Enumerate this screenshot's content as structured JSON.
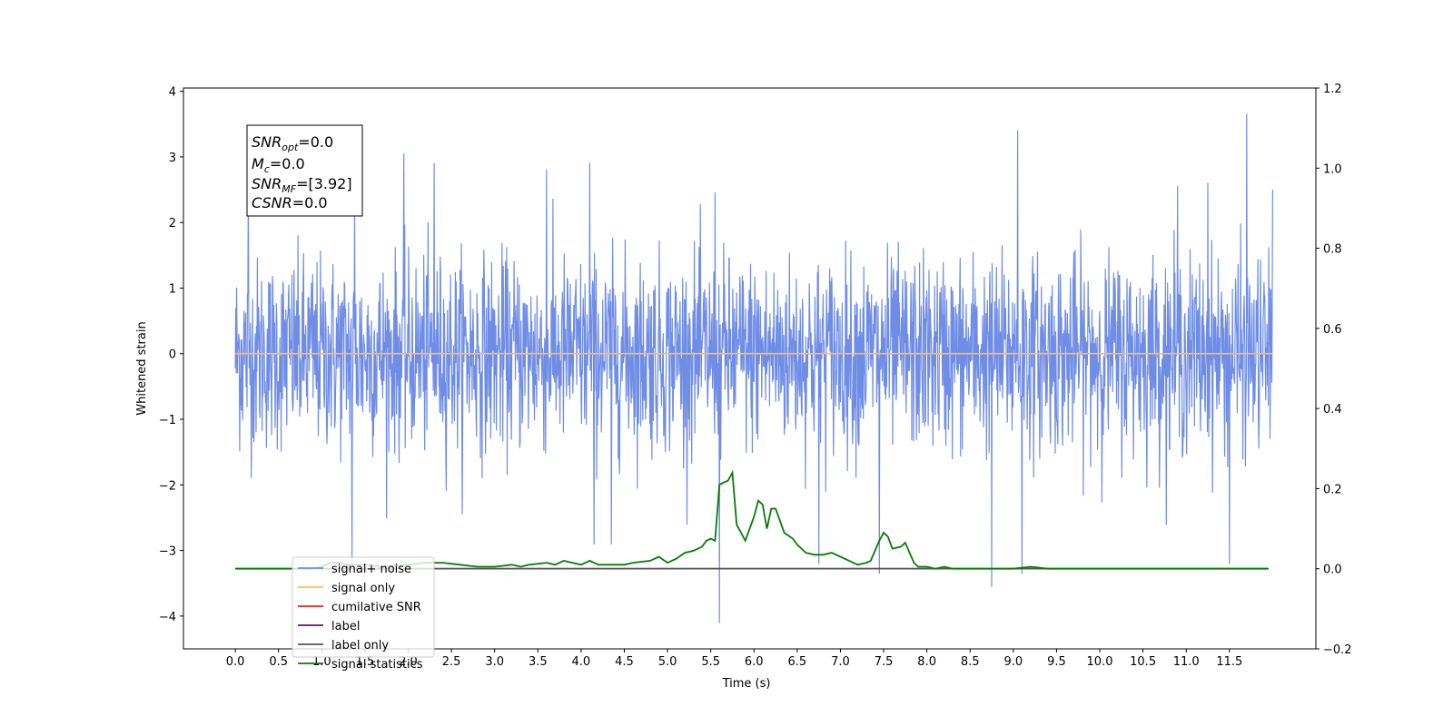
{
  "chart_data": {
    "type": "line",
    "xlabel": "Time (s)",
    "ylabel": "Whitened strain",
    "xlim": [
      -0.6,
      12.5
    ],
    "ylim": [
      -4.5,
      4.05
    ],
    "y2lim": [
      -0.2,
      1.2
    ],
    "x_ticks": [
      "0.0",
      "0.5",
      "1.0",
      "1.5",
      "2.0",
      "2.5",
      "3.0",
      "3.5",
      "4.0",
      "4.5",
      "5.0",
      "5.5",
      "6.0",
      "6.5",
      "7.0",
      "7.5",
      "8.0",
      "8.5",
      "9.0",
      "9.5",
      "10.0",
      "10.5",
      "11.0",
      "11.5"
    ],
    "y_ticks": [
      "4",
      "3",
      "2",
      "1",
      "0",
      "−1",
      "−2",
      "−3",
      "−4"
    ],
    "y2_ticks": [
      "1.2",
      "1.0",
      "0.8",
      "0.6",
      "0.4",
      "0.2",
      "0.0",
      "−0.2"
    ],
    "annotation": {
      "snr_opt": {
        "sym": "SNR",
        "sub": "opt",
        "val": "=0.0"
      },
      "mc": {
        "sym": "M",
        "sub": "c",
        "val": "=0.0"
      },
      "snr_mf": {
        "sym": "SNR",
        "sub": "MF",
        "val": "=[3.92]"
      },
      "csnr": {
        "sym": "CSNR",
        "val": "=0.0"
      }
    },
    "legend_position": "lower-left",
    "series": [
      {
        "name": "signal+ noise",
        "color": "#6f8de6",
        "axis": "left",
        "x_range": [
          0.0,
          12.0
        ],
        "noise_sigma": 0.72,
        "spikes": [
          [
            0.15,
            2.5
          ],
          [
            1.35,
            -3.2
          ],
          [
            1.38,
            2.2
          ],
          [
            1.95,
            3.05
          ],
          [
            2.3,
            2.9
          ],
          [
            3.6,
            2.8
          ],
          [
            4.1,
            2.9
          ],
          [
            4.15,
            -2.9
          ],
          [
            4.35,
            -2.9
          ],
          [
            5.6,
            -4.1
          ],
          [
            5.55,
            2.45
          ],
          [
            6.75,
            -3.2
          ],
          [
            7.45,
            -3.35
          ],
          [
            8.75,
            -3.55
          ],
          [
            9.05,
            3.4
          ],
          [
            9.1,
            -3.35
          ],
          [
            10.9,
            2.55
          ],
          [
            11.25,
            2.6
          ],
          [
            11.7,
            3.65
          ],
          [
            11.5,
            -3.2
          ],
          [
            12.0,
            2.5
          ]
        ]
      },
      {
        "name": "signal only",
        "color": "#ffbb55",
        "axis": "left",
        "x_range": [
          0.0,
          12.0
        ],
        "value": 0.0
      },
      {
        "name": "cumilative SNR",
        "color": "#e8201a",
        "axis": "right",
        "x_range": [
          0.0,
          11.95
        ],
        "value": 0.0
      },
      {
        "name": "label",
        "color": "#6a0a7a",
        "axis": "right",
        "x_range": [
          0.0,
          11.95
        ],
        "value": 0.0
      },
      {
        "name": "label only",
        "color": "#555555",
        "axis": "right",
        "x_range": [
          0.0,
          11.95
        ],
        "value": 0.0
      },
      {
        "name": "signal statistics",
        "color": "#0a7a0a",
        "axis": "right",
        "x": [
          0.0,
          0.5,
          0.9,
          1.0,
          1.1,
          1.2,
          1.3,
          1.5,
          1.7,
          2.0,
          2.2,
          2.4,
          2.6,
          2.8,
          3.0,
          3.2,
          3.3,
          3.4,
          3.6,
          3.7,
          3.8,
          4.0,
          4.1,
          4.2,
          4.3,
          4.5,
          4.6,
          4.8,
          4.9,
          5.0,
          5.1,
          5.2,
          5.3,
          5.4,
          5.45,
          5.5,
          5.55,
          5.6,
          5.7,
          5.75,
          5.8,
          5.85,
          5.9,
          6.0,
          6.05,
          6.1,
          6.15,
          6.2,
          6.25,
          6.3,
          6.35,
          6.45,
          6.5,
          6.6,
          6.7,
          6.8,
          6.9,
          7.0,
          7.1,
          7.2,
          7.3,
          7.35,
          7.45,
          7.5,
          7.55,
          7.6,
          7.7,
          7.75,
          7.8,
          7.85,
          7.9,
          8.0,
          8.1,
          8.2,
          8.3,
          8.5,
          8.8,
          9.0,
          9.2,
          9.4,
          9.6,
          10.0,
          11.0,
          11.95
        ],
        "values": [
          0.0,
          0.0,
          0.0,
          0.005,
          0.015,
          0.015,
          0.01,
          0.01,
          0.005,
          0.01,
          0.015,
          0.015,
          0.01,
          0.005,
          0.005,
          0.01,
          0.005,
          0.01,
          0.015,
          0.01,
          0.02,
          0.01,
          0.02,
          0.01,
          0.01,
          0.01,
          0.015,
          0.02,
          0.03,
          0.015,
          0.025,
          0.04,
          0.045,
          0.055,
          0.07,
          0.075,
          0.07,
          0.21,
          0.22,
          0.24,
          0.11,
          0.09,
          0.07,
          0.13,
          0.17,
          0.16,
          0.1,
          0.15,
          0.15,
          0.12,
          0.09,
          0.075,
          0.06,
          0.04,
          0.035,
          0.035,
          0.04,
          0.03,
          0.02,
          0.01,
          0.015,
          0.02,
          0.07,
          0.09,
          0.08,
          0.05,
          0.055,
          0.065,
          0.04,
          0.015,
          0.005,
          0.005,
          0.0,
          0.005,
          0.0,
          0.0,
          0.0,
          0.0,
          0.005,
          0.0,
          0.0,
          0.0,
          0.0,
          0.0
        ]
      }
    ]
  }
}
